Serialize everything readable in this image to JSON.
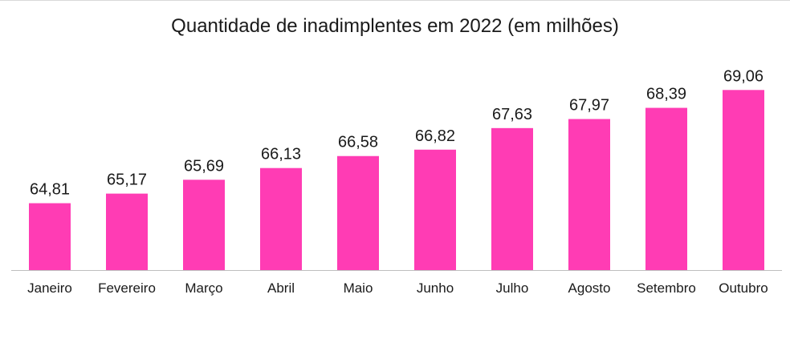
{
  "chart_data": {
    "type": "bar",
    "title": "Quantidade de inadimplentes em 2022 (em milhões)",
    "categories": [
      "Janeiro",
      "Fevereiro",
      "Março",
      "Abril",
      "Maio",
      "Junho",
      "Julho",
      "Agosto",
      "Setembro",
      "Outubro"
    ],
    "values": [
      64.81,
      65.17,
      65.69,
      66.13,
      66.58,
      66.82,
      67.63,
      67.97,
      68.39,
      69.06
    ],
    "data_labels": [
      "64,81",
      "65,17",
      "65,69",
      "66,13",
      "66,58",
      "66,82",
      "67,63",
      "67,97",
      "68,39",
      "69,06"
    ],
    "ylim": [
      62.3,
      69.4
    ],
    "grid": false,
    "legend": "none",
    "colors": {
      "bar": "#ff3cb4",
      "axis": "#bfbfbf",
      "text": "#1a1a1a"
    }
  }
}
